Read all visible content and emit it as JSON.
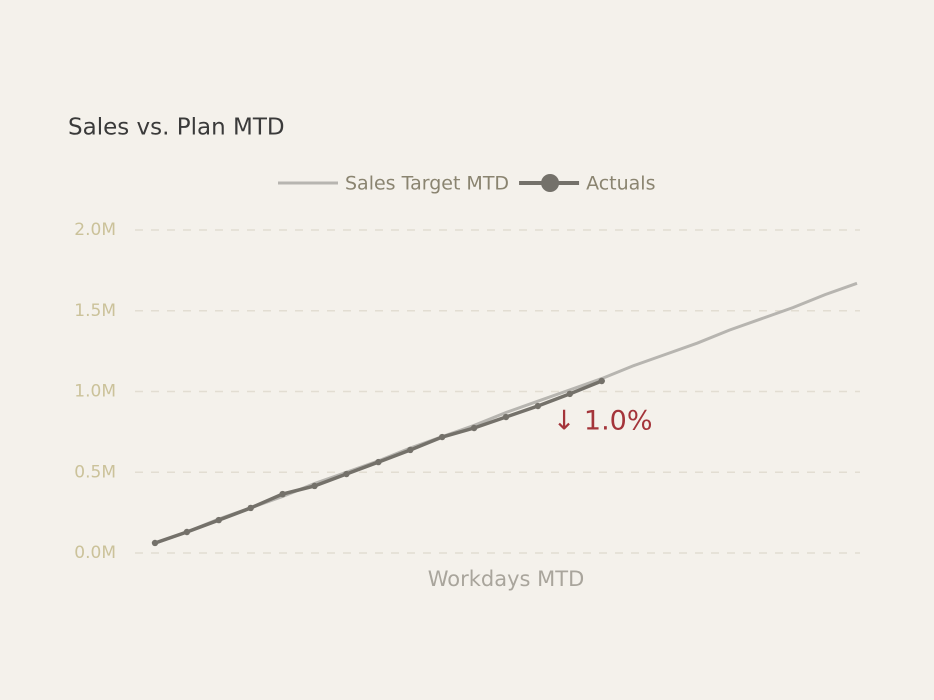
{
  "chart_data": {
    "type": "line",
    "title": "Sales vs. Plan MTD",
    "x_label": "Workdays MTD",
    "x": [
      1,
      2,
      3,
      4,
      5,
      6,
      7,
      8,
      9,
      10,
      11,
      12,
      13,
      14,
      15,
      16,
      17,
      18,
      19,
      20,
      21,
      22,
      23
    ],
    "xlim": [
      1,
      23
    ],
    "series": [
      {
        "name": "Sales Target MTD",
        "color": "#b7b5b0",
        "values": [
          60000,
          130000,
          210000,
          280000,
          350000,
          430000,
          500000,
          570000,
          650000,
          720000,
          790000,
          870000,
          940000,
          1010000,
          1080000,
          1160000,
          1230000,
          1300000,
          1380000,
          1450000,
          1520000,
          1600000,
          1670000
        ]
      },
      {
        "name": "Actuals",
        "color": "#74716a",
        "markers": true,
        "values": [
          62000,
          130000,
          204000,
          279000,
          365000,
          415000,
          489000,
          563000,
          638000,
          718000,
          774000,
          842000,
          910000,
          985000,
          1065000,
          null,
          null,
          null,
          null,
          null,
          null,
          null,
          null
        ]
      }
    ],
    "ylim": [
      0,
      2000000
    ],
    "yticks": [
      {
        "value": 0,
        "label": "0.0M"
      },
      {
        "value": 500000,
        "label": "0.5M"
      },
      {
        "value": 1000000,
        "label": "1.0M"
      },
      {
        "value": 1500000,
        "label": "1.5M"
      },
      {
        "value": 2000000,
        "label": "2.0M"
      }
    ],
    "grid": true,
    "annotation": {
      "text": "↓ 1.0%",
      "color": "#a4343a"
    }
  }
}
